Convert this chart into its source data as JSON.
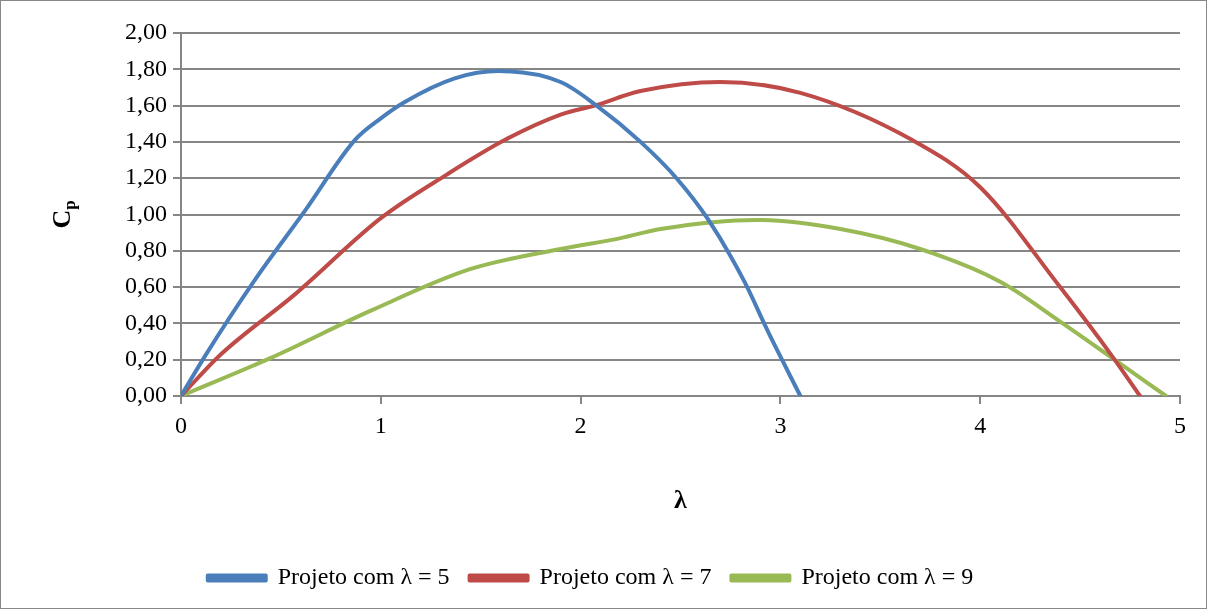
{
  "chart_data": {
    "type": "line",
    "xlabel": "λ",
    "ylabel": "C$_{p}$",
    "xlim": [
      0,
      5
    ],
    "xticks": [
      0,
      1,
      2,
      3,
      4,
      5
    ],
    "ylim": [
      0,
      2
    ],
    "yticks": [
      {
        "value": 0,
        "label": "0,00"
      },
      {
        "value": 0.2,
        "label": "0,20"
      },
      {
        "value": 0.4,
        "label": "0,40"
      },
      {
        "value": 0.6,
        "label": "0,60"
      },
      {
        "value": 0.8,
        "label": "0,80"
      },
      {
        "value": 1,
        "label": "1,00"
      },
      {
        "value": 1.2,
        "label": "1,20"
      },
      {
        "value": 1.4,
        "label": "1,40"
      },
      {
        "value": 1.6,
        "label": "1,60"
      },
      {
        "value": 1.8,
        "label": "1,80"
      },
      {
        "value": 2,
        "label": "2,00"
      }
    ],
    "grid": "y",
    "legend": "bottom",
    "marker": "none",
    "line_style": "solid",
    "series": [
      {
        "name": "Projeto com λ = 5",
        "color": "#4a7ebb",
        "x": [
          0,
          0.12,
          0.37,
          0.62,
          0.87,
          1.0,
          1.12,
          1.37,
          1.59,
          1.9,
          2.08,
          2.3,
          2.48,
          2.64,
          2.82,
          2.94,
          3.1
        ],
        "values": [
          0,
          0.22,
          0.64,
          1.02,
          1.41,
          1.53,
          1.62,
          1.75,
          1.79,
          1.73,
          1.6,
          1.4,
          1.2,
          0.97,
          0.63,
          0.35,
          0
        ]
      },
      {
        "name": "Projeto com λ = 7",
        "color": "#be4b48",
        "x": [
          0,
          0.2,
          0.57,
          1.0,
          1.33,
          1.62,
          1.9,
          2.07,
          2.3,
          2.7,
          3.1,
          3.66,
          4.0,
          4.4,
          4.66,
          4.8
        ],
        "values": [
          0,
          0.23,
          0.56,
          0.98,
          1.22,
          1.41,
          1.55,
          1.6,
          1.68,
          1.73,
          1.67,
          1.41,
          1.15,
          0.6,
          0.22,
          0
        ]
      },
      {
        "name": "Projeto com λ = 9",
        "color": "#98b954",
        "x": [
          0,
          0.45,
          0.95,
          1.45,
          1.9,
          2.2,
          2.4,
          2.88,
          3.3,
          3.7,
          4.1,
          4.4,
          4.66,
          4.93
        ],
        "values": [
          0,
          0.21,
          0.47,
          0.7,
          0.81,
          0.87,
          0.92,
          0.97,
          0.92,
          0.81,
          0.63,
          0.41,
          0.21,
          0
        ]
      }
    ]
  }
}
